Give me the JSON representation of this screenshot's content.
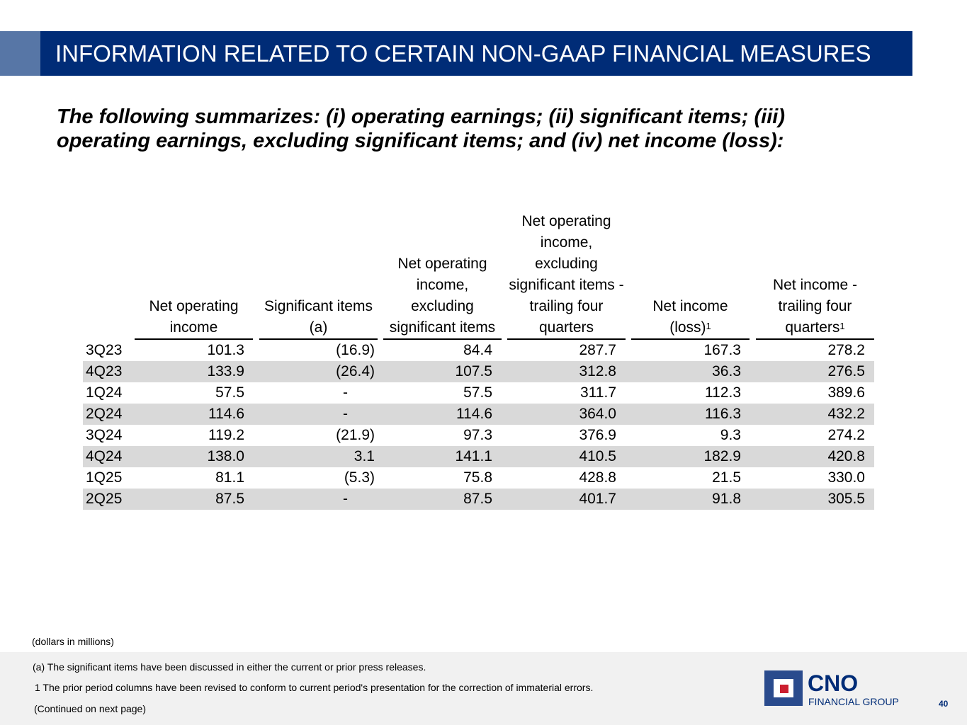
{
  "title": "INFORMATION RELATED TO CERTAIN NON-GAAP FINANCIAL MEASURES",
  "subtitle": "The following summarizes: (i) operating earnings; (ii) significant items; (iii) operating earnings, excluding significant items; and (iv) net income (loss):",
  "table": {
    "headers": [
      "Net operating income",
      "Significant items (a)",
      "Net operating income, excluding significant items",
      "Net operating income, excluding significant items - trailing four quarters",
      "Net income (loss)",
      "Net income - trailing four quarters"
    ],
    "header_superscripts": [
      "",
      "",
      "",
      "",
      "1",
      "1"
    ],
    "rows": [
      {
        "period": "3Q23",
        "values": [
          "101.3",
          "(16.9)",
          "84.4",
          "287.7",
          "167.3",
          "278.2"
        ]
      },
      {
        "period": "4Q23",
        "values": [
          "133.9",
          "(26.4)",
          "107.5",
          "312.8",
          "36.3",
          "276.5"
        ]
      },
      {
        "period": "1Q24",
        "values": [
          "57.5",
          "-",
          "57.5",
          "311.7",
          "112.3",
          "389.6"
        ]
      },
      {
        "period": "2Q24",
        "values": [
          "114.6",
          "-",
          "114.6",
          "364.0",
          "116.3",
          "432.2"
        ]
      },
      {
        "period": "3Q24",
        "values": [
          "119.2",
          "(21.9)",
          "97.3",
          "376.9",
          "9.3",
          "274.2"
        ]
      },
      {
        "period": "4Q24",
        "values": [
          "138.0",
          "3.1",
          "141.1",
          "410.5",
          "182.9",
          "420.8"
        ]
      },
      {
        "period": "1Q25",
        "values": [
          "81.1",
          "(5.3)",
          "75.8",
          "428.8",
          "21.5",
          "330.0"
        ]
      },
      {
        "period": "2Q25",
        "values": [
          "87.5",
          "-",
          "87.5",
          "401.7",
          "91.8",
          "305.5"
        ]
      }
    ]
  },
  "notes": {
    "units": "(dollars in millions)",
    "a": "(a) The significant items have been discussed in either the current or prior press releases.",
    "one": "1   The prior period columns have been revised to conform to current period's presentation for the correction of immaterial errors.",
    "continued": "(Continued on next page)"
  },
  "logo": {
    "name": "CNO",
    "sub": "FINANCIAL GROUP"
  },
  "page_number": "40",
  "colors": {
    "title_bar": "#002c77",
    "accent": "#5776a6",
    "row_alt": "#d9d9d9",
    "logo_red": "#cc1f2f"
  }
}
